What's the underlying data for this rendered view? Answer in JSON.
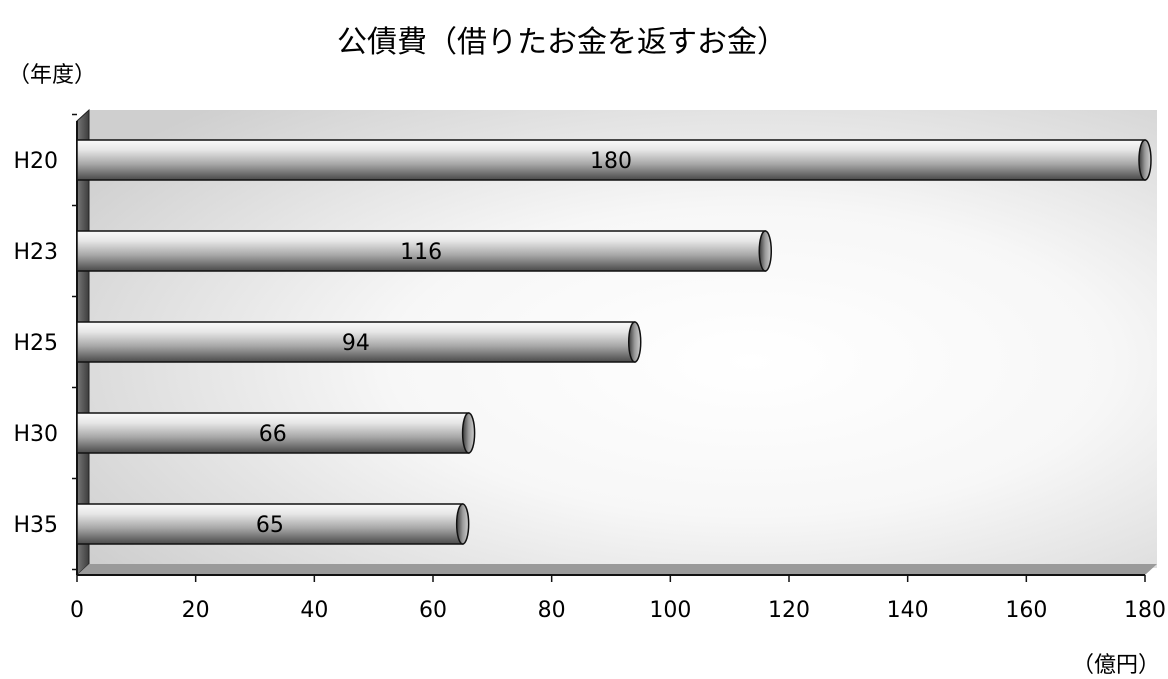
{
  "chart_data": {
    "type": "bar",
    "orientation": "horizontal",
    "title": "公債費（借りたお金を返すお金）",
    "ylabel": "（年度）",
    "xlabel": "（億円）",
    "categories": [
      "H20",
      "H23",
      "H25",
      "H30",
      "H35"
    ],
    "values": [
      180,
      116,
      94,
      66,
      65
    ],
    "data_labels": [
      "180",
      "116",
      "94",
      "66",
      "65"
    ],
    "xlim": [
      0,
      180
    ],
    "xticks": [
      0,
      20,
      40,
      60,
      80,
      100,
      120,
      140,
      160,
      180
    ],
    "grid": false,
    "legend": "none",
    "colors": {
      "bar_light": "#f4f4f4",
      "bar_mid": "#b8b8b8",
      "bar_dark": "#5a5a5a",
      "bar_outline": "#111111",
      "plot_bg_light": "#ffffff",
      "plot_bg_dark": "#cfcfcf",
      "wall": "#555555"
    }
  }
}
